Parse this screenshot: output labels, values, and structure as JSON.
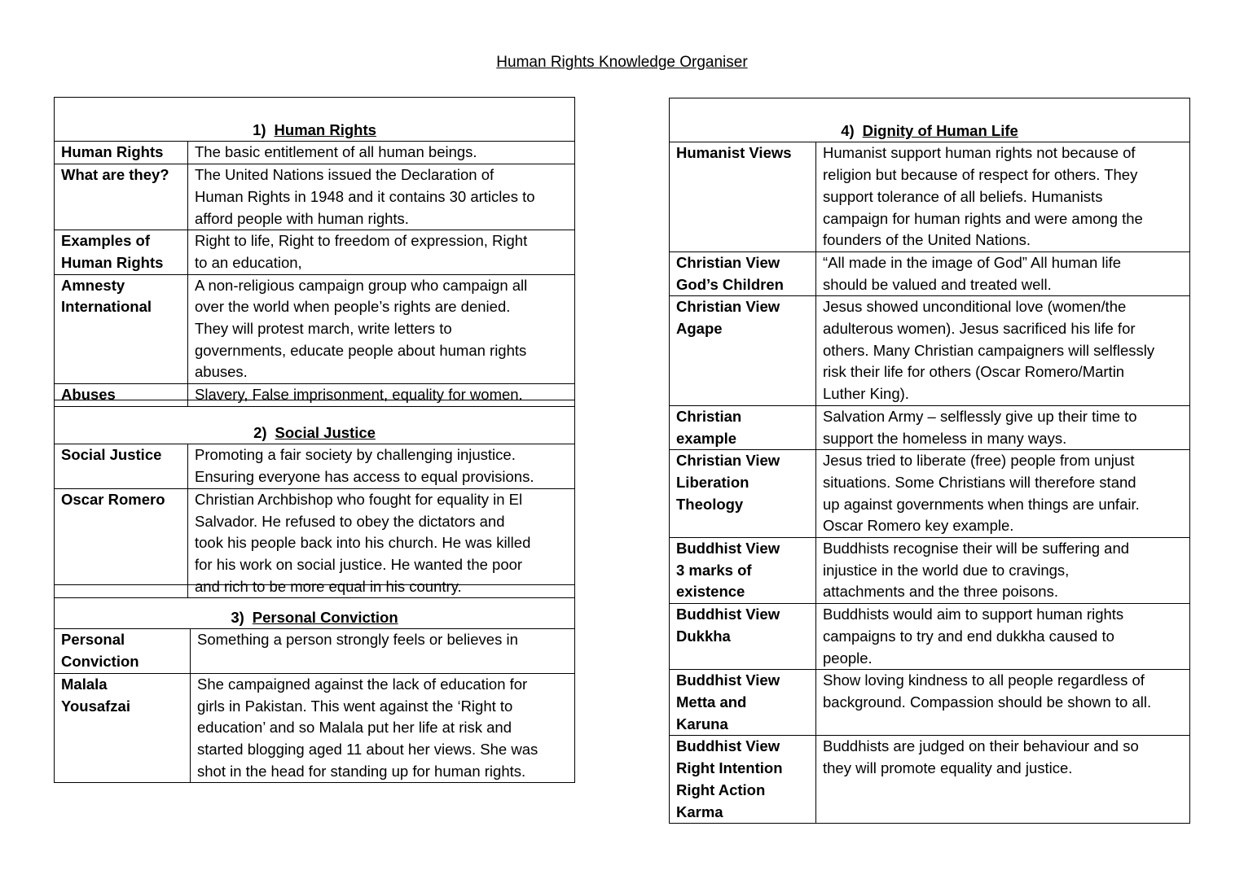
{
  "title": "Human Rights Knowledge Organiser",
  "sections": [
    {
      "number": "1)",
      "heading": "Human Rights",
      "rows": [
        {
          "term": "Human Rights",
          "definition": "The basic entitlement of all human beings."
        },
        {
          "term": "What are they?",
          "definition": "The United Nations issued the Declaration of\nHuman Rights in 1948 and it contains 30 articles to\nafford people with human rights."
        },
        {
          "term": "Examples of\nHuman Rights",
          "definition": "Right to life, Right to freedom of expression, Right\nto an education,"
        },
        {
          "term": "Amnesty\nInternational",
          "definition": "A non-religious campaign group who campaign all\nover the world when people’s rights are denied.\nThey will protest march, write letters to\ngovernments, educate people about human rights\nabuses."
        },
        {
          "term": "Abuses",
          "definition": "Slavery, False imprisonment, equality for women."
        }
      ]
    },
    {
      "number": "2)",
      "heading": "Social Justice",
      "rows": [
        {
          "term": "Social Justice",
          "definition": "Promoting a fair society by challenging injustice.\nEnsuring everyone has access to equal provisions."
        },
        {
          "term": "Oscar Romero",
          "definition": "Christian Archbishop who fought for equality in El\nSalvador. He refused to obey the dictators and\ntook his people back into his church. He was killed\nfor his work on social justice. He wanted the poor\nand rich to be more equal in his country."
        }
      ]
    },
    {
      "number": "3)",
      "heading": "Personal Conviction",
      "rows": [
        {
          "term": "Personal\nConviction",
          "definition": "Something a person strongly feels or believes in"
        },
        {
          "term": "Malala\nYousafzai",
          "definition": "She campaigned against the lack of education for\ngirls in Pakistan. This went against the ‘Right to\neducation’ and so Malala put her life at risk and\nstarted blogging aged 11 about her views. She was\nshot in the head for standing up for human rights."
        }
      ]
    },
    {
      "number": "4)",
      "heading": "Dignity of Human Life",
      "rows": [
        {
          "term": "Humanist Views",
          "definition": "Humanist support human rights not because of\nreligion but because of respect for others. They\nsupport tolerance of all beliefs. Humanists\ncampaign for human rights and were among the\nfounders of the United Nations."
        },
        {
          "term": "Christian View\nGod’s Children",
          "definition": "“All made in the image of God” All human life\nshould be valued and treated well."
        },
        {
          "term": "Christian View\nAgape",
          "definition": "Jesus showed unconditional love (women/the\nadulterous women). Jesus sacrificed his life for\nothers. Many Christian campaigners will selflessly\nrisk their life for others (Oscar Romero/Martin\nLuther King)."
        },
        {
          "term": "Christian\nexample",
          "definition": "Salvation Army – selflessly give up their time to\nsupport the homeless in many ways."
        },
        {
          "term": "Christian View\nLiberation\nTheology",
          "definition": "Jesus tried to liberate (free) people from unjust\nsituations. Some Christians will therefore stand\nup against governments when things are unfair.\nOscar Romero key example."
        },
        {
          "term": "Buddhist View\n3 marks of\nexistence",
          "definition": "Buddhists recognise their will be suffering and\ninjustice in the world due to cravings,\nattachments and the three poisons."
        },
        {
          "term": "Buddhist View\nDukkha",
          "definition": "Buddhists would aim to support human rights\ncampaigns to try and end dukkha caused to\npeople."
        },
        {
          "term": "Buddhist View\nMetta and\nKaruna",
          "definition": "Show loving kindness to all people regardless of\nbackground. Compassion should be shown to all."
        },
        {
          "term": "Buddhist View\nRight Intention\nRight Action\nKarma",
          "definition": "Buddhists are judged on their behaviour and so\nthey will promote equality and justice."
        }
      ]
    }
  ]
}
